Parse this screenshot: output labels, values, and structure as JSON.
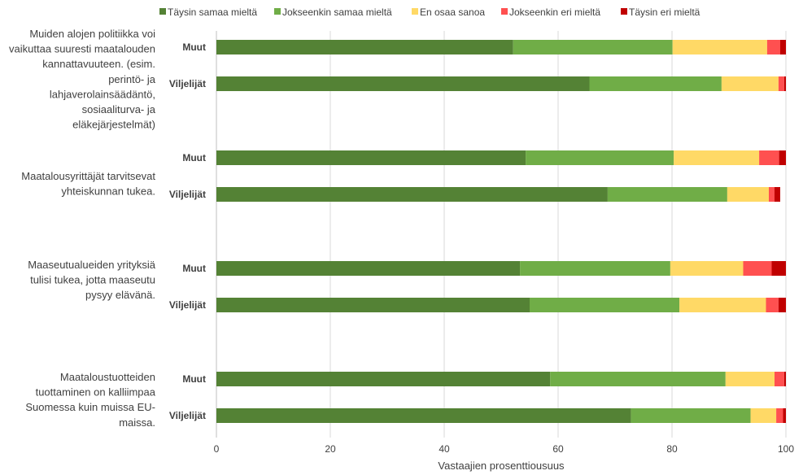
{
  "chart_data": {
    "type": "bar",
    "orientation": "horizontal",
    "stacked": true,
    "xlabel": "Vastaajien prosenttiousuus",
    "xlim": [
      0,
      100
    ],
    "xticks": [
      "0",
      "20",
      "40",
      "60",
      "80",
      "100"
    ],
    "grid": true,
    "legend_position": "top",
    "series_names": [
      "Täysin samaa mieltä",
      "Jokseenkin samaa mieltä",
      "En osaa sanoa",
      "Jokseenkin eri mieltä",
      "Täysin eri mieltä"
    ],
    "colors": [
      "#548235",
      "#70ad47",
      "#ffd966",
      "#ff5050",
      "#c00000"
    ],
    "groups": [
      {
        "label_lines": [
          "Muiden alojen politiikka voi",
          "vaikuttaa suuresti maatalouden",
          "kannattavuuteen. (esim.",
          "perintö- ja",
          "lahjaverolainsäädäntö,",
          "sosiaaliturva- ja",
          "eläkejärjestelmät)"
        ],
        "bars": [
          {
            "label": "Muut",
            "values": [
              52.1,
              28.0,
              16.6,
              2.3,
              1.0
            ]
          },
          {
            "label": "Viljelijät",
            "values": [
              65.5,
              23.2,
              10.0,
              1.0,
              0.3
            ]
          }
        ]
      },
      {
        "label_lines": [
          "Maatalousyrittäjät tarvitsevat",
          "yhteiskunnan tukea."
        ],
        "bars": [
          {
            "label": "Muut",
            "values": [
              54.3,
              26.0,
              15.0,
              3.5,
              1.2
            ]
          },
          {
            "label": "Viljelijät",
            "values": [
              68.7,
              21.0,
              7.3,
              1.0,
              1.0
            ]
          }
        ]
      },
      {
        "label_lines": [
          "Maaseutualueiden yrityksiä",
          "tulisi tukea, jotta maaseutu",
          "pysyy elävänä."
        ],
        "bars": [
          {
            "label": "Muut",
            "values": [
              53.3,
              26.4,
              12.8,
              5.0,
              2.5
            ]
          },
          {
            "label": "Viljelijät",
            "values": [
              55.0,
              26.3,
              15.2,
              2.2,
              1.3
            ]
          }
        ]
      },
      {
        "label_lines": [
          "Maataloustuotteiden",
          "tuottaminen on kalliimpaa",
          "Suomessa kuin muissa EU-",
          "maissa."
        ],
        "bars": [
          {
            "label": "Muut",
            "values": [
              58.6,
              30.8,
              8.6,
              1.7,
              0.3
            ]
          },
          {
            "label": "Viljelijät",
            "values": [
              72.8,
              21.0,
              4.5,
              1.2,
              0.5
            ]
          }
        ]
      }
    ]
  }
}
